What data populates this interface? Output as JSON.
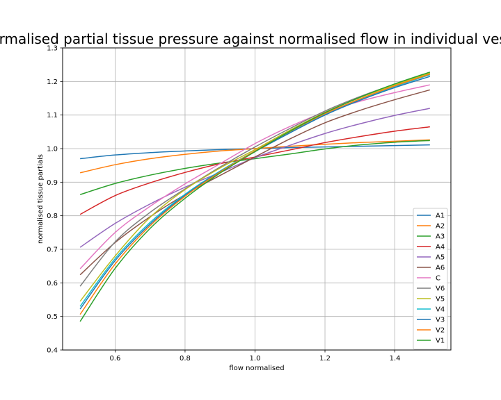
{
  "chart_data": {
    "type": "line",
    "title": "Normalised partial tissue pressure against normalised flow in individual vessels",
    "xlabel": "flow normalised",
    "ylabel": "normalised tissue partials",
    "xlim": [
      0.45,
      1.56
    ],
    "ylim": [
      0.4,
      1.3
    ],
    "xticks": [
      0.6,
      0.8,
      1.0,
      1.2,
      1.4
    ],
    "xtick_labels": [
      "0.6",
      "0.8",
      "1.0",
      "1.2",
      "1.4"
    ],
    "yticks": [
      0.4,
      0.5,
      0.6,
      0.7,
      0.8,
      0.9,
      1.0,
      1.1,
      1.2,
      1.3
    ],
    "ytick_labels": [
      "0.4",
      "0.5",
      "0.6",
      "0.7",
      "0.8",
      "0.9",
      "1.0",
      "1.1",
      "1.2",
      "1.3"
    ],
    "grid": true,
    "legend_position": "lower-right",
    "x": [
      0.5,
      0.6,
      0.7,
      0.8,
      0.9,
      1.0,
      1.1,
      1.2,
      1.3,
      1.4,
      1.5
    ],
    "series": [
      {
        "name": "A1",
        "color": "#1f77b4",
        "values": [
          0.97,
          0.981,
          0.988,
          0.993,
          0.997,
          1.0,
          1.003,
          1.005,
          1.007,
          1.009,
          1.011
        ]
      },
      {
        "name": "A2",
        "color": "#ff7f0e",
        "values": [
          0.928,
          0.952,
          0.97,
          0.983,
          0.993,
          1.0,
          1.007,
          1.013,
          1.018,
          1.022,
          1.026
        ]
      },
      {
        "name": "A3",
        "color": "#2ca02c",
        "values": [
          0.863,
          0.896,
          0.921,
          0.941,
          0.957,
          0.97,
          0.984,
          0.999,
          1.011,
          1.019,
          1.024
        ]
      },
      {
        "name": "A4",
        "color": "#d62728",
        "values": [
          0.804,
          0.86,
          0.898,
          0.929,
          0.955,
          0.975,
          0.996,
          1.018,
          1.036,
          1.052,
          1.065
        ]
      },
      {
        "name": "A5",
        "color": "#9467bd",
        "values": [
          0.706,
          0.777,
          0.835,
          0.885,
          0.929,
          0.973,
          1.01,
          1.045,
          1.074,
          1.099,
          1.12
        ]
      },
      {
        "name": "A6",
        "color": "#8c564b",
        "values": [
          0.624,
          0.72,
          0.797,
          0.863,
          0.92,
          0.975,
          1.029,
          1.077,
          1.114,
          1.146,
          1.175
        ]
      },
      {
        "name": "C",
        "color": "#e377c2",
        "values": [
          0.642,
          0.75,
          0.828,
          0.895,
          0.955,
          1.015,
          1.066,
          1.109,
          1.141,
          1.167,
          1.19
        ]
      },
      {
        "name": "V6",
        "color": "#7f7f7f",
        "values": [
          0.59,
          0.722,
          0.81,
          0.88,
          0.945,
          1.005,
          1.06,
          1.112,
          1.155,
          1.192,
          1.225
        ]
      },
      {
        "name": "V5",
        "color": "#bcbd22",
        "values": [
          0.545,
          0.68,
          0.795,
          0.878,
          0.942,
          0.997,
          1.055,
          1.108,
          1.152,
          1.19,
          1.225
        ]
      },
      {
        "name": "V4",
        "color": "#17becf",
        "values": [
          0.53,
          0.672,
          0.78,
          0.864,
          0.933,
          0.993,
          1.05,
          1.103,
          1.147,
          1.185,
          1.22
        ]
      },
      {
        "name": "V3",
        "color": "#1f77b4",
        "values": [
          0.522,
          0.666,
          0.775,
          0.861,
          0.931,
          0.991,
          1.047,
          1.1,
          1.144,
          1.182,
          1.215
        ]
      },
      {
        "name": "V2",
        "color": "#ff7f0e",
        "values": [
          0.506,
          0.656,
          0.77,
          0.858,
          0.93,
          0.993,
          1.051,
          1.104,
          1.148,
          1.187,
          1.222
        ]
      },
      {
        "name": "V1",
        "color": "#2ca02c",
        "values": [
          0.485,
          0.643,
          0.762,
          0.852,
          0.927,
          0.991,
          1.052,
          1.107,
          1.153,
          1.193,
          1.228
        ]
      }
    ]
  }
}
